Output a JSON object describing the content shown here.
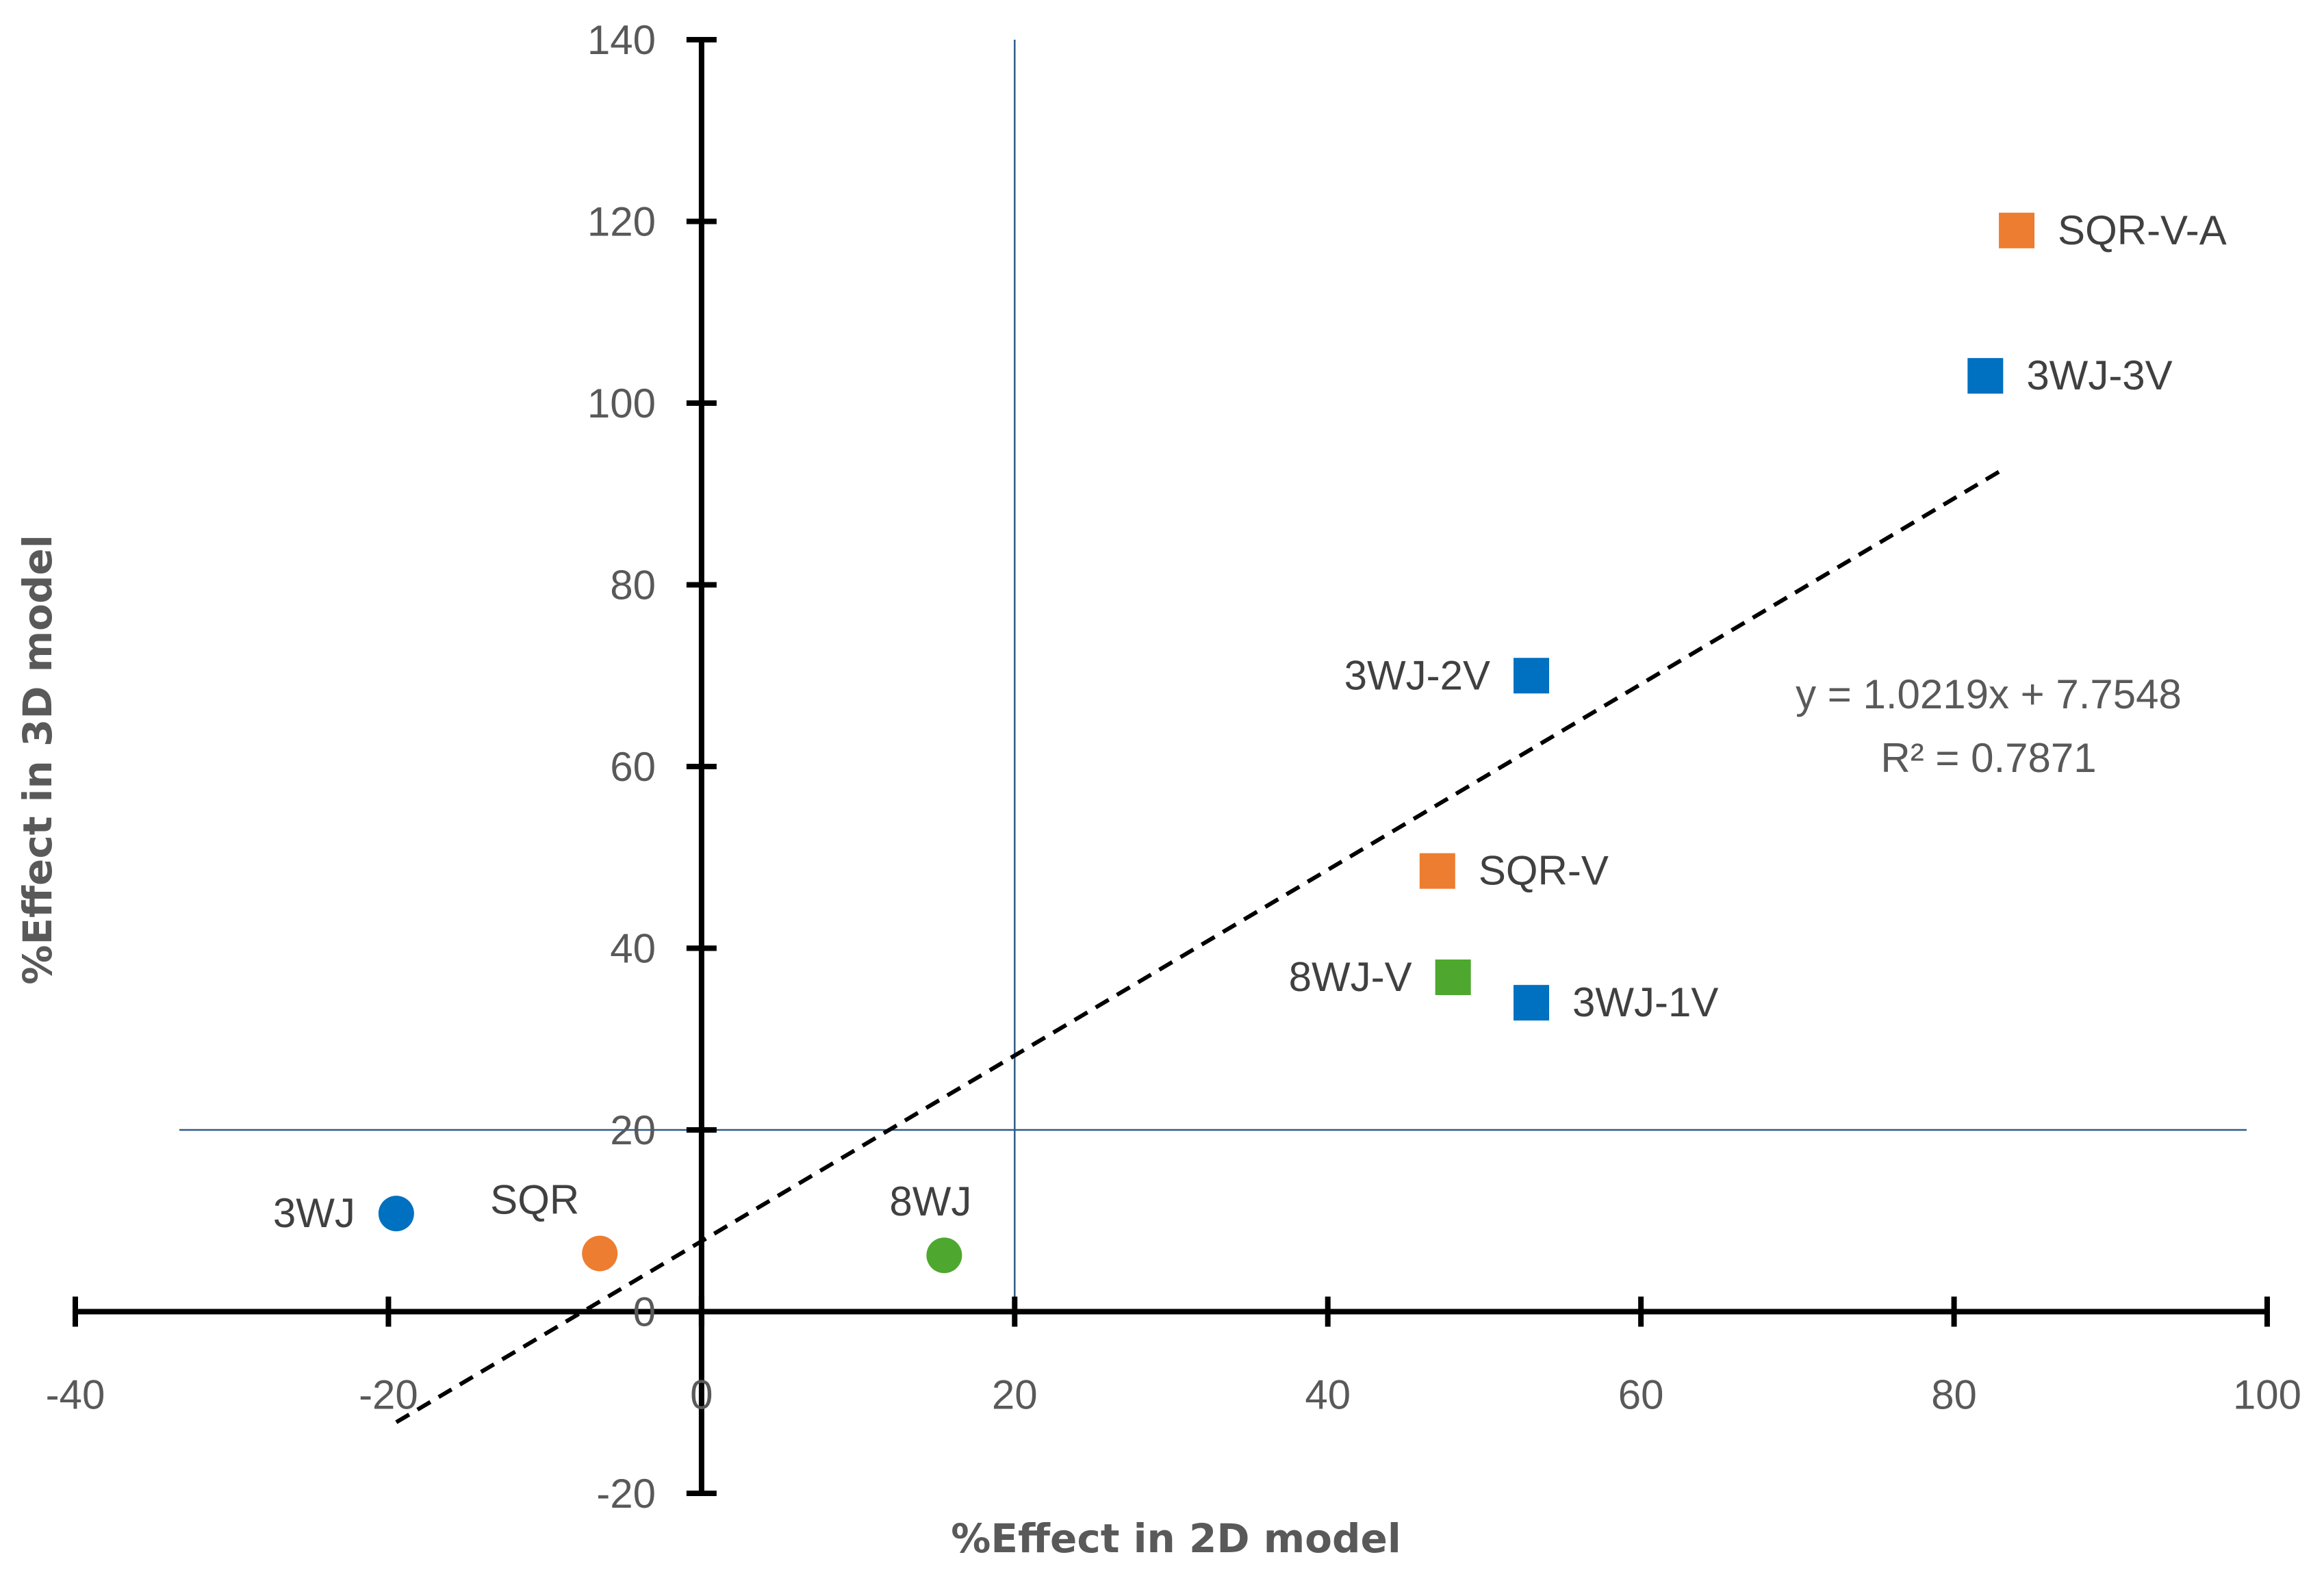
{
  "chart_data": {
    "type": "scatter",
    "title": "",
    "xlabel": "%Effect in 2D model",
    "ylabel": "%Effect in 3D model",
    "xlim": [
      -40,
      100
    ],
    "ylim": [
      -20,
      140
    ],
    "xticks": [
      -40,
      -20,
      0,
      20,
      40,
      60,
      80,
      100
    ],
    "yticks": [
      -20,
      0,
      20,
      40,
      60,
      80,
      100,
      120,
      140
    ],
    "reference_lines": {
      "vertical_x": 20,
      "horizontal_y": 20
    },
    "points": [
      {
        "label": "3WJ",
        "x": -19.5,
        "y": 10.8,
        "shape": "circle",
        "color": "#0070C0",
        "label_side": "left"
      },
      {
        "label": "SQR",
        "x": -6.5,
        "y": 6.4,
        "shape": "circle",
        "color": "#ED7D31",
        "label_side": "above-left"
      },
      {
        "label": "8WJ",
        "x": 15.5,
        "y": 6.2,
        "shape": "circle",
        "color": "#4EA72E",
        "label_side": "above"
      },
      {
        "label": "3WJ-1V",
        "x": 53,
        "y": 34,
        "shape": "square",
        "color": "#0070C0",
        "label_side": "right"
      },
      {
        "label": "8WJ-V",
        "x": 48,
        "y": 36.8,
        "shape": "square",
        "color": "#4EA72E",
        "label_side": "left"
      },
      {
        "label": "SQR-V",
        "x": 47,
        "y": 48.5,
        "shape": "square",
        "color": "#ED7D31",
        "label_side": "right"
      },
      {
        "label": "3WJ-2V",
        "x": 53,
        "y": 70,
        "shape": "square",
        "color": "#0070C0",
        "label_side": "left"
      },
      {
        "label": "3WJ-3V",
        "x": 82,
        "y": 103,
        "shape": "square",
        "color": "#0070C0",
        "label_side": "right"
      },
      {
        "label": "SQR-V-A",
        "x": 84,
        "y": 119,
        "shape": "square",
        "color": "#ED7D31",
        "label_side": "right"
      }
    ],
    "trendline": {
      "type": "linear",
      "slope": 1.0219,
      "intercept": 7.7548,
      "x_range": [
        -19.5,
        83
      ],
      "equation": "y = 1.0219x + 7.7548",
      "r_squared": "R² = 0.7871"
    },
    "colors": {
      "axis": "#000000",
      "reference_line": "#2F5C8A",
      "trendline": "#000000"
    }
  }
}
